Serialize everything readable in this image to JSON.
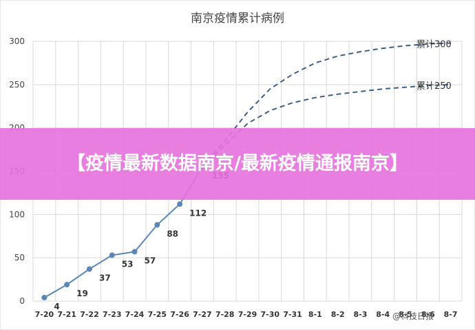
{
  "chart_data": {
    "type": "line",
    "title": "南京疫情累计病例",
    "categories": [
      "7-20",
      "7-21",
      "7-22",
      "7-23",
      "7-24",
      "7-25",
      "7-26",
      "7-27",
      "7-28",
      "7-29",
      "7-30",
      "7-31",
      "8-1",
      "8-2",
      "8-3",
      "8-4",
      "8-5",
      "8-6",
      "8-7"
    ],
    "ylim": [
      0,
      300
    ],
    "yticks": [
      0,
      50,
      100,
      150,
      200,
      250,
      300
    ],
    "grid": true,
    "series": [
      {
        "name": "",
        "color": "#5b86b8",
        "style": "solid",
        "values": [
          4,
          19,
          37,
          53,
          57,
          88,
          112,
          155,
          null,
          null,
          null,
          null,
          null,
          null,
          null,
          null,
          null,
          null,
          null
        ],
        "data_labels": [
          "4",
          "19",
          "37",
          "53",
          "57",
          "88",
          "112",
          "155"
        ]
      },
      {
        "name": "累计300",
        "color": "#3c5f87",
        "style": "dashed",
        "values": [
          null,
          null,
          null,
          null,
          null,
          null,
          null,
          155,
          185,
          218,
          245,
          262,
          275,
          283,
          288,
          292,
          295,
          297,
          298
        ]
      },
      {
        "name": "累计250",
        "color": "#3c5f87",
        "style": "dashed",
        "values": [
          null,
          null,
          null,
          null,
          null,
          null,
          null,
          155,
          180,
          205,
          220,
          229,
          235,
          239,
          242,
          245,
          247,
          249,
          250
        ]
      }
    ]
  },
  "banner": {
    "text": "【疫情最新数据南京/最新疫情通报南京】"
  },
  "watermark": {
    "text": "@科技日报"
  }
}
